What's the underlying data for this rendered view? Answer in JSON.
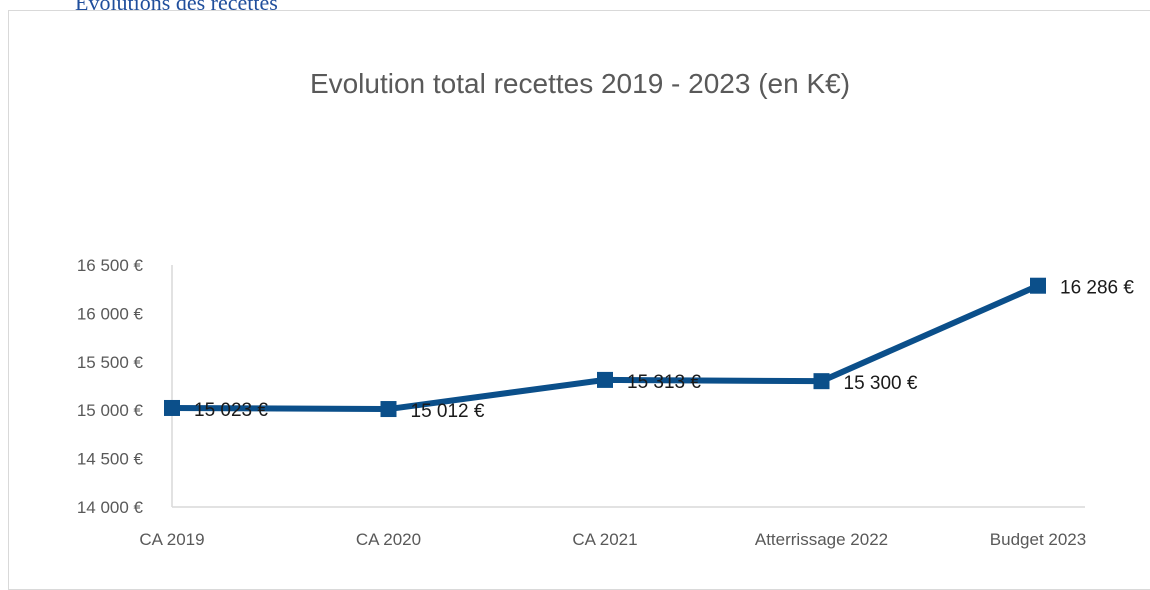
{
  "page": {
    "heading": "Evolutions des recettes"
  },
  "chart_data": {
    "type": "line",
    "title": "Evolution total recettes 2019 - 2023 (en K€)",
    "xlabel": "",
    "ylabel": "",
    "categories": [
      "CA 2019",
      "CA 2020",
      "CA 2021",
      "Atterrissage 2022",
      "Budget 2023"
    ],
    "series": [
      {
        "values": [
          15023,
          15012,
          15313,
          15300,
          16286
        ],
        "data_labels": [
          "15 023 €",
          "15 012 €",
          "15 313 €",
          "15 300 €",
          "16 286 €"
        ]
      }
    ],
    "ylim": [
      14000,
      16500
    ],
    "yticks": [
      14000,
      14500,
      15000,
      15500,
      16000,
      16500
    ],
    "ytick_labels": [
      "14 000 €",
      "14 500 €",
      "15 000 €",
      "15 500 €",
      "16 000 €",
      "16 500 €"
    ],
    "grid": false,
    "legend": "none",
    "colors": {
      "series": "#0b4f8a",
      "axis": "#d9d9d9",
      "text": "#595959"
    }
  }
}
